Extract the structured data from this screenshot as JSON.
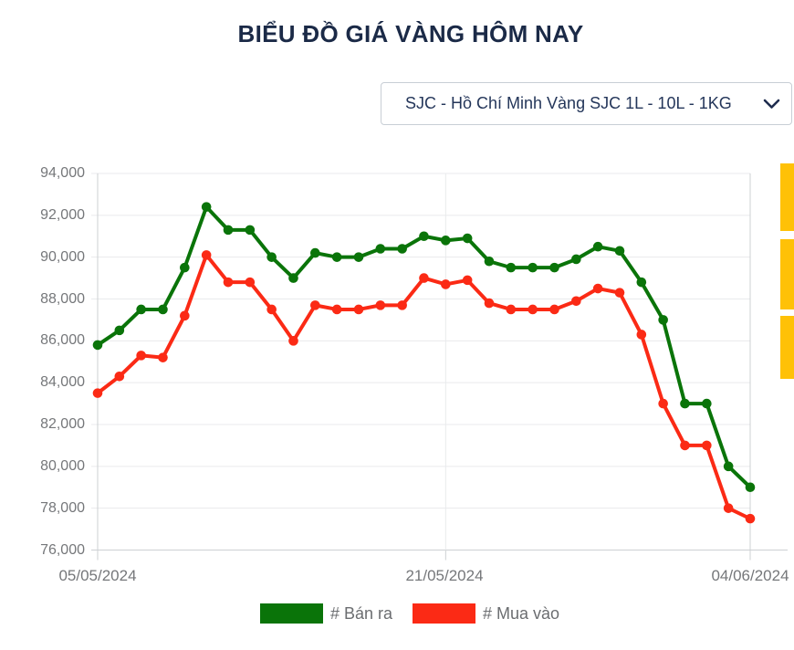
{
  "page": {
    "title": "BIỂU ĐỒ GIÁ VÀNG HÔM NAY"
  },
  "selector": {
    "value": "SJC - Hồ Chí Minh Vàng SJC 1L - 10L - 1KG",
    "chevron_icon": "chevron-down"
  },
  "chart_data": {
    "type": "line",
    "title": "BIỂU ĐỒ GIÁ VÀNG HÔM NAY",
    "x": [
      "05/05/2024",
      "06/05/2024",
      "07/05/2024",
      "08/05/2024",
      "09/05/2024",
      "10/05/2024",
      "11/05/2024",
      "12/05/2024",
      "13/05/2024",
      "14/05/2024",
      "15/05/2024",
      "16/05/2024",
      "17/05/2024",
      "18/05/2024",
      "19/05/2024",
      "20/05/2024",
      "21/05/2024",
      "22/05/2024",
      "23/05/2024",
      "24/05/2024",
      "25/05/2024",
      "26/05/2024",
      "27/05/2024",
      "28/05/2024",
      "29/05/2024",
      "30/05/2024",
      "31/05/2024",
      "01/06/2024",
      "02/06/2024",
      "03/06/2024",
      "04/06/2024"
    ],
    "series": [
      {
        "name": "# Bán ra",
        "color": "#0a7409",
        "values": [
          85800,
          86500,
          87500,
          87500,
          89500,
          92400,
          91300,
          91300,
          90000,
          89000,
          90200,
          90000,
          90000,
          90400,
          90400,
          91000,
          90800,
          90900,
          89800,
          89500,
          89500,
          89500,
          89900,
          90500,
          90300,
          88800,
          87000,
          83000,
          83000,
          80000,
          79000
        ]
      },
      {
        "name": "# Mua vào",
        "color": "#fb2a15",
        "values": [
          83500,
          84300,
          85300,
          85200,
          87200,
          90100,
          88800,
          88800,
          87500,
          86000,
          87700,
          87500,
          87500,
          87700,
          87700,
          89000,
          88700,
          88900,
          87800,
          87500,
          87500,
          87500,
          87900,
          88500,
          88300,
          86300,
          83000,
          81000,
          81000,
          78000,
          77500
        ]
      }
    ],
    "ylim": [
      76000,
      94000
    ],
    "y_tick_step": 2000,
    "y_tick_labels": [
      "94,000",
      "92,000",
      "90,000",
      "88,000",
      "86,000",
      "84,000",
      "82,000",
      "80,000",
      "78,000",
      "76,000"
    ],
    "x_tick_labels": [
      "05/05/2024",
      "21/05/2024",
      "04/06/2024"
    ],
    "grid": true,
    "legend_position": "bottom"
  },
  "legend": [
    {
      "label": "# Bán ra",
      "color": "#0a7409"
    },
    {
      "label": "# Mua vào",
      "color": "#fb2a15"
    }
  ],
  "side_banners": {
    "color": "#ffc107",
    "count": 3
  }
}
